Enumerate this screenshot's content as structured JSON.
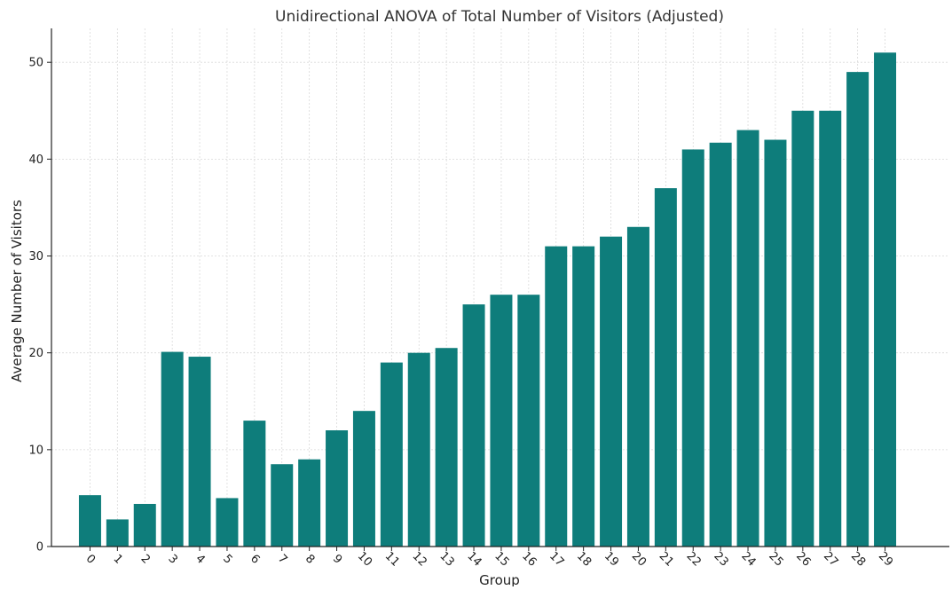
{
  "chart_data": {
    "type": "bar",
    "title": "Unidirectional ANOVA of Total Number of Visitors (Adjusted)",
    "xlabel": "Group",
    "ylabel": "Average Number of Visitors",
    "categories": [
      "0",
      "1",
      "2",
      "3",
      "4",
      "5",
      "6",
      "7",
      "8",
      "9",
      "10",
      "11",
      "12",
      "13",
      "14",
      "15",
      "16",
      "17",
      "18",
      "19",
      "20",
      "21",
      "22",
      "23",
      "24",
      "25",
      "26",
      "27",
      "28",
      "29"
    ],
    "values": [
      5.3,
      2.8,
      4.4,
      20.1,
      19.6,
      5.0,
      13.0,
      8.5,
      9.0,
      12.0,
      14.0,
      19.0,
      20.0,
      20.5,
      25.0,
      26.0,
      26.0,
      31.0,
      31.0,
      32.0,
      33.0,
      37.0,
      41.0,
      41.7,
      43.0,
      42.0,
      45.0,
      45.0,
      49.0,
      51.0
    ],
    "ylim": [
      0,
      53.5
    ],
    "yticks": [
      0,
      10,
      20,
      30,
      40,
      50
    ],
    "bar_color": "#0e7d7b",
    "grid": true,
    "x_tick_rotation": 45
  }
}
